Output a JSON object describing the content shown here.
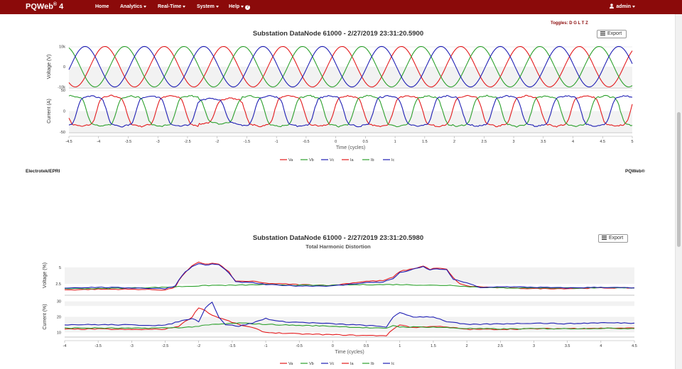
{
  "nav": {
    "brand": "PQWeb",
    "brand_sup": "®",
    "brand_version": " 4",
    "items": [
      {
        "label": "Home",
        "dropdown": false
      },
      {
        "label": "Analytics",
        "dropdown": true
      },
      {
        "label": "Real-Time",
        "dropdown": true
      },
      {
        "label": "System",
        "dropdown": true
      },
      {
        "label": "Help",
        "dropdown": true
      }
    ],
    "user": "admin",
    "bar_color": "#8b0a0a"
  },
  "toggles_label": "Toggles: D G L T Z",
  "export_label": "Export",
  "footer_left": "Electrotek/EPRI",
  "footer_right": "PQWeb®",
  "chart_data": [
    {
      "type": "line",
      "title": "Substation DataNode 61000 - 2/27/2019 23:31:20.5900",
      "subtitle": "",
      "xlabel": "Time (cycles)",
      "xlim": [
        -4.5,
        5
      ],
      "xticks": [
        "-4.5",
        "-4",
        "-3.5",
        "-3",
        "-2.5",
        "-2",
        "-1.5",
        "-1",
        "-0.5",
        "0",
        "0.5",
        "1",
        "1.5",
        "2",
        "2.5",
        "3",
        "3.5",
        "4",
        "4.5",
        "5"
      ],
      "panels": [
        {
          "ylabel": "Voltage (V)",
          "ylim": [
            -10500,
            10500
          ],
          "yticks": [
            {
              "v": 10000,
              "t": "10k"
            },
            {
              "v": 0,
              "t": "0"
            },
            {
              "v": -10000,
              "t": "-10k"
            }
          ],
          "kind": "voltage"
        },
        {
          "ylabel": "Current (A)",
          "ylim": [
            -52,
            52
          ],
          "yticks": [
            {
              "v": 50,
              "t": "50"
            },
            {
              "v": 0,
              "t": "0"
            },
            {
              "v": -50,
              "t": "-50"
            }
          ],
          "kind": "current"
        }
      ],
      "legend": [
        "Va",
        "Vb",
        "Vc",
        "Ia",
        "Ib",
        "Ic"
      ],
      "colors": {
        "a": "#e31a1c",
        "b": "#2ca02c",
        "c": "#1f1fb4"
      }
    },
    {
      "type": "line",
      "title": "Substation DataNode 61000 - 2/27/2019 23:31:20.5980",
      "subtitle": "Total Harmonic Distortion",
      "xlabel": "Time (cycles)",
      "xlim": [
        -4,
        4.5
      ],
      "xticks": [
        "-4",
        "-3.5",
        "-3",
        "-2.5",
        "-2",
        "-1.5",
        "-1",
        "-0.5",
        "0",
        "0.5",
        "1",
        "1.5",
        "2",
        "2.5",
        "3",
        "3.5",
        "4",
        "4.5"
      ],
      "panels": [
        {
          "ylabel": "Voltage (%)",
          "ylim": [
            0.8,
            6.8
          ],
          "yticks": [
            {
              "v": 5,
              "t": "5"
            },
            {
              "v": 2.5,
              "t": "2.5"
            }
          ],
          "kind": "thd_voltage"
        },
        {
          "ylabel": "Current (%)",
          "ylim": [
            7,
            33
          ],
          "yticks": [
            {
              "v": 30,
              "t": "30"
            },
            {
              "v": 20,
              "t": "20"
            },
            {
              "v": 10,
              "t": "10"
            }
          ],
          "kind": "thd_current"
        }
      ],
      "legend": [
        "Va",
        "Vb",
        "Vc",
        "Ia",
        "Ib",
        "Ic"
      ],
      "series": {
        "Va": [
          [
            -4,
            1.6
          ],
          [
            -3.5,
            1.7
          ],
          [
            -3,
            1.7
          ],
          [
            -2.5,
            1.6
          ],
          [
            -2.35,
            2.0
          ],
          [
            -2.3,
            3.0
          ],
          [
            -2.2,
            4.2
          ],
          [
            -2.1,
            5.2
          ],
          [
            -2.0,
            5.8
          ],
          [
            -1.9,
            5.5
          ],
          [
            -1.8,
            5.6
          ],
          [
            -1.7,
            5.5
          ],
          [
            -1.55,
            4.3
          ],
          [
            -1.45,
            2.9
          ],
          [
            -1.2,
            2.9
          ],
          [
            -1.0,
            2.6
          ],
          [
            -0.5,
            2.4
          ],
          [
            0,
            2.3
          ],
          [
            0.5,
            2.9
          ],
          [
            0.75,
            3.0
          ],
          [
            0.9,
            3.5
          ],
          [
            1.0,
            4.4
          ],
          [
            1.2,
            4.8
          ],
          [
            1.35,
            5.2
          ],
          [
            1.45,
            4.7
          ],
          [
            1.55,
            4.9
          ],
          [
            1.7,
            4.7
          ],
          [
            1.8,
            3.4
          ],
          [
            1.9,
            2.5
          ],
          [
            2.0,
            2.2
          ],
          [
            2.5,
            1.9
          ],
          [
            3,
            1.8
          ],
          [
            3.5,
            1.8
          ],
          [
            4,
            1.9
          ],
          [
            4.5,
            1.9
          ]
        ],
        "Vb": [
          [
            -4,
            1.8
          ],
          [
            -3.5,
            1.8
          ],
          [
            -3,
            1.9
          ],
          [
            -2.5,
            2.0
          ],
          [
            -2.3,
            2.1
          ],
          [
            -2.0,
            2.2
          ],
          [
            -1.8,
            2.3
          ],
          [
            -1.5,
            2.3
          ],
          [
            -1.0,
            2.4
          ],
          [
            -0.5,
            2.3
          ],
          [
            0,
            2.3
          ],
          [
            0.5,
            2.4
          ],
          [
            1.0,
            2.4
          ],
          [
            1.5,
            2.3
          ],
          [
            1.8,
            2.3
          ],
          [
            2.0,
            2.1
          ],
          [
            2.5,
            1.9
          ],
          [
            3,
            1.9
          ],
          [
            3.5,
            1.9
          ],
          [
            4,
            1.9
          ],
          [
            4.5,
            1.9
          ]
        ],
        "Vc": [
          [
            -4,
            1.9
          ],
          [
            -3.5,
            2.0
          ],
          [
            -3,
            1.9
          ],
          [
            -2.5,
            1.8
          ],
          [
            -2.35,
            2.2
          ],
          [
            -2.3,
            3.1
          ],
          [
            -2.2,
            4.3
          ],
          [
            -2.1,
            5.1
          ],
          [
            -2.0,
            5.6
          ],
          [
            -1.9,
            5.3
          ],
          [
            -1.8,
            5.5
          ],
          [
            -1.7,
            5.4
          ],
          [
            -1.55,
            4.2
          ],
          [
            -1.45,
            2.8
          ],
          [
            -1.2,
            2.7
          ],
          [
            -1.0,
            2.4
          ],
          [
            -0.5,
            2.2
          ],
          [
            0,
            2.2
          ],
          [
            0.5,
            2.7
          ],
          [
            0.75,
            2.8
          ],
          [
            0.9,
            3.3
          ],
          [
            1.0,
            4.2
          ],
          [
            1.2,
            4.7
          ],
          [
            1.35,
            5.1
          ],
          [
            1.45,
            4.6
          ],
          [
            1.55,
            4.8
          ],
          [
            1.7,
            4.6
          ],
          [
            1.8,
            3.2
          ],
          [
            1.9,
            2.9
          ],
          [
            2.0,
            2.7
          ],
          [
            2.2,
            1.9
          ],
          [
            2.5,
            2.1
          ],
          [
            3,
            2.0
          ],
          [
            3.5,
            1.9
          ],
          [
            4,
            2.0
          ],
          [
            4.5,
            1.9
          ]
        ],
        "Ia": [
          [
            -4,
            12
          ],
          [
            -3.5,
            12.2
          ],
          [
            -3,
            11.8
          ],
          [
            -2.5,
            12.1
          ],
          [
            -2.3,
            14
          ],
          [
            -2.1,
            20
          ],
          [
            -2.0,
            26
          ],
          [
            -1.9,
            24
          ],
          [
            -1.8,
            21
          ],
          [
            -1.6,
            18
          ],
          [
            -1.4,
            15
          ],
          [
            -1.2,
            13
          ],
          [
            -1.0,
            10
          ],
          [
            -0.5,
            9
          ],
          [
            0,
            8.5
          ],
          [
            0.5,
            8
          ],
          [
            0.8,
            8
          ],
          [
            0.9,
            12
          ],
          [
            1.0,
            15
          ],
          [
            1.2,
            13
          ],
          [
            1.5,
            14
          ],
          [
            1.8,
            13
          ],
          [
            2.0,
            12
          ],
          [
            2.5,
            12
          ],
          [
            3,
            12.3
          ],
          [
            3.5,
            12.5
          ],
          [
            4,
            12.7
          ],
          [
            4.5,
            12.8
          ]
        ],
        "Ib": [
          [
            -4,
            12.8
          ],
          [
            -3.5,
            12.8
          ],
          [
            -3,
            12.6
          ],
          [
            -2.5,
            12.9
          ],
          [
            -2.2,
            13.2
          ],
          [
            -2.0,
            14
          ],
          [
            -1.8,
            15
          ],
          [
            -1.6,
            15.5
          ],
          [
            -1.4,
            16
          ],
          [
            -1.0,
            15.2
          ],
          [
            -0.5,
            14.5
          ],
          [
            0,
            14
          ],
          [
            0.5,
            13
          ],
          [
            0.8,
            12.5
          ],
          [
            0.9,
            14.5
          ],
          [
            1.0,
            13.5
          ],
          [
            1.5,
            13.4
          ],
          [
            2.0,
            12.5
          ],
          [
            2.5,
            12.2
          ],
          [
            3,
            12.4
          ],
          [
            3.5,
            12.4
          ],
          [
            4,
            12.6
          ],
          [
            4.5,
            12.5
          ]
        ],
        "Ic": [
          [
            -4,
            15
          ],
          [
            -3.5,
            15
          ],
          [
            -3,
            14.8
          ],
          [
            -2.5,
            14.5
          ],
          [
            -2.3,
            17
          ],
          [
            -2.1,
            19
          ],
          [
            -2.0,
            17
          ],
          [
            -1.9,
            26
          ],
          [
            -1.8,
            29.5
          ],
          [
            -1.7,
            20
          ],
          [
            -1.6,
            15
          ],
          [
            -1.4,
            14
          ],
          [
            -1.2,
            16
          ],
          [
            -1.0,
            19
          ],
          [
            -0.8,
            17
          ],
          [
            -0.5,
            16.5
          ],
          [
            0,
            15.5
          ],
          [
            0.5,
            14.5
          ],
          [
            0.8,
            13.5
          ],
          [
            0.9,
            20
          ],
          [
            1.0,
            22.5
          ],
          [
            1.2,
            20
          ],
          [
            1.5,
            20
          ],
          [
            1.7,
            17
          ],
          [
            2.0,
            15
          ],
          [
            2.5,
            15.5
          ],
          [
            3,
            16
          ],
          [
            3.5,
            15.6
          ],
          [
            4,
            16.2
          ],
          [
            4.5,
            16
          ]
        ]
      },
      "colors": {
        "Va": "#e31a1c",
        "Vb": "#2ca02c",
        "Vc": "#1f1fb4",
        "Ia": "#e31a1c",
        "Ib": "#2ca02c",
        "Ic": "#1f1fb4"
      }
    }
  ]
}
